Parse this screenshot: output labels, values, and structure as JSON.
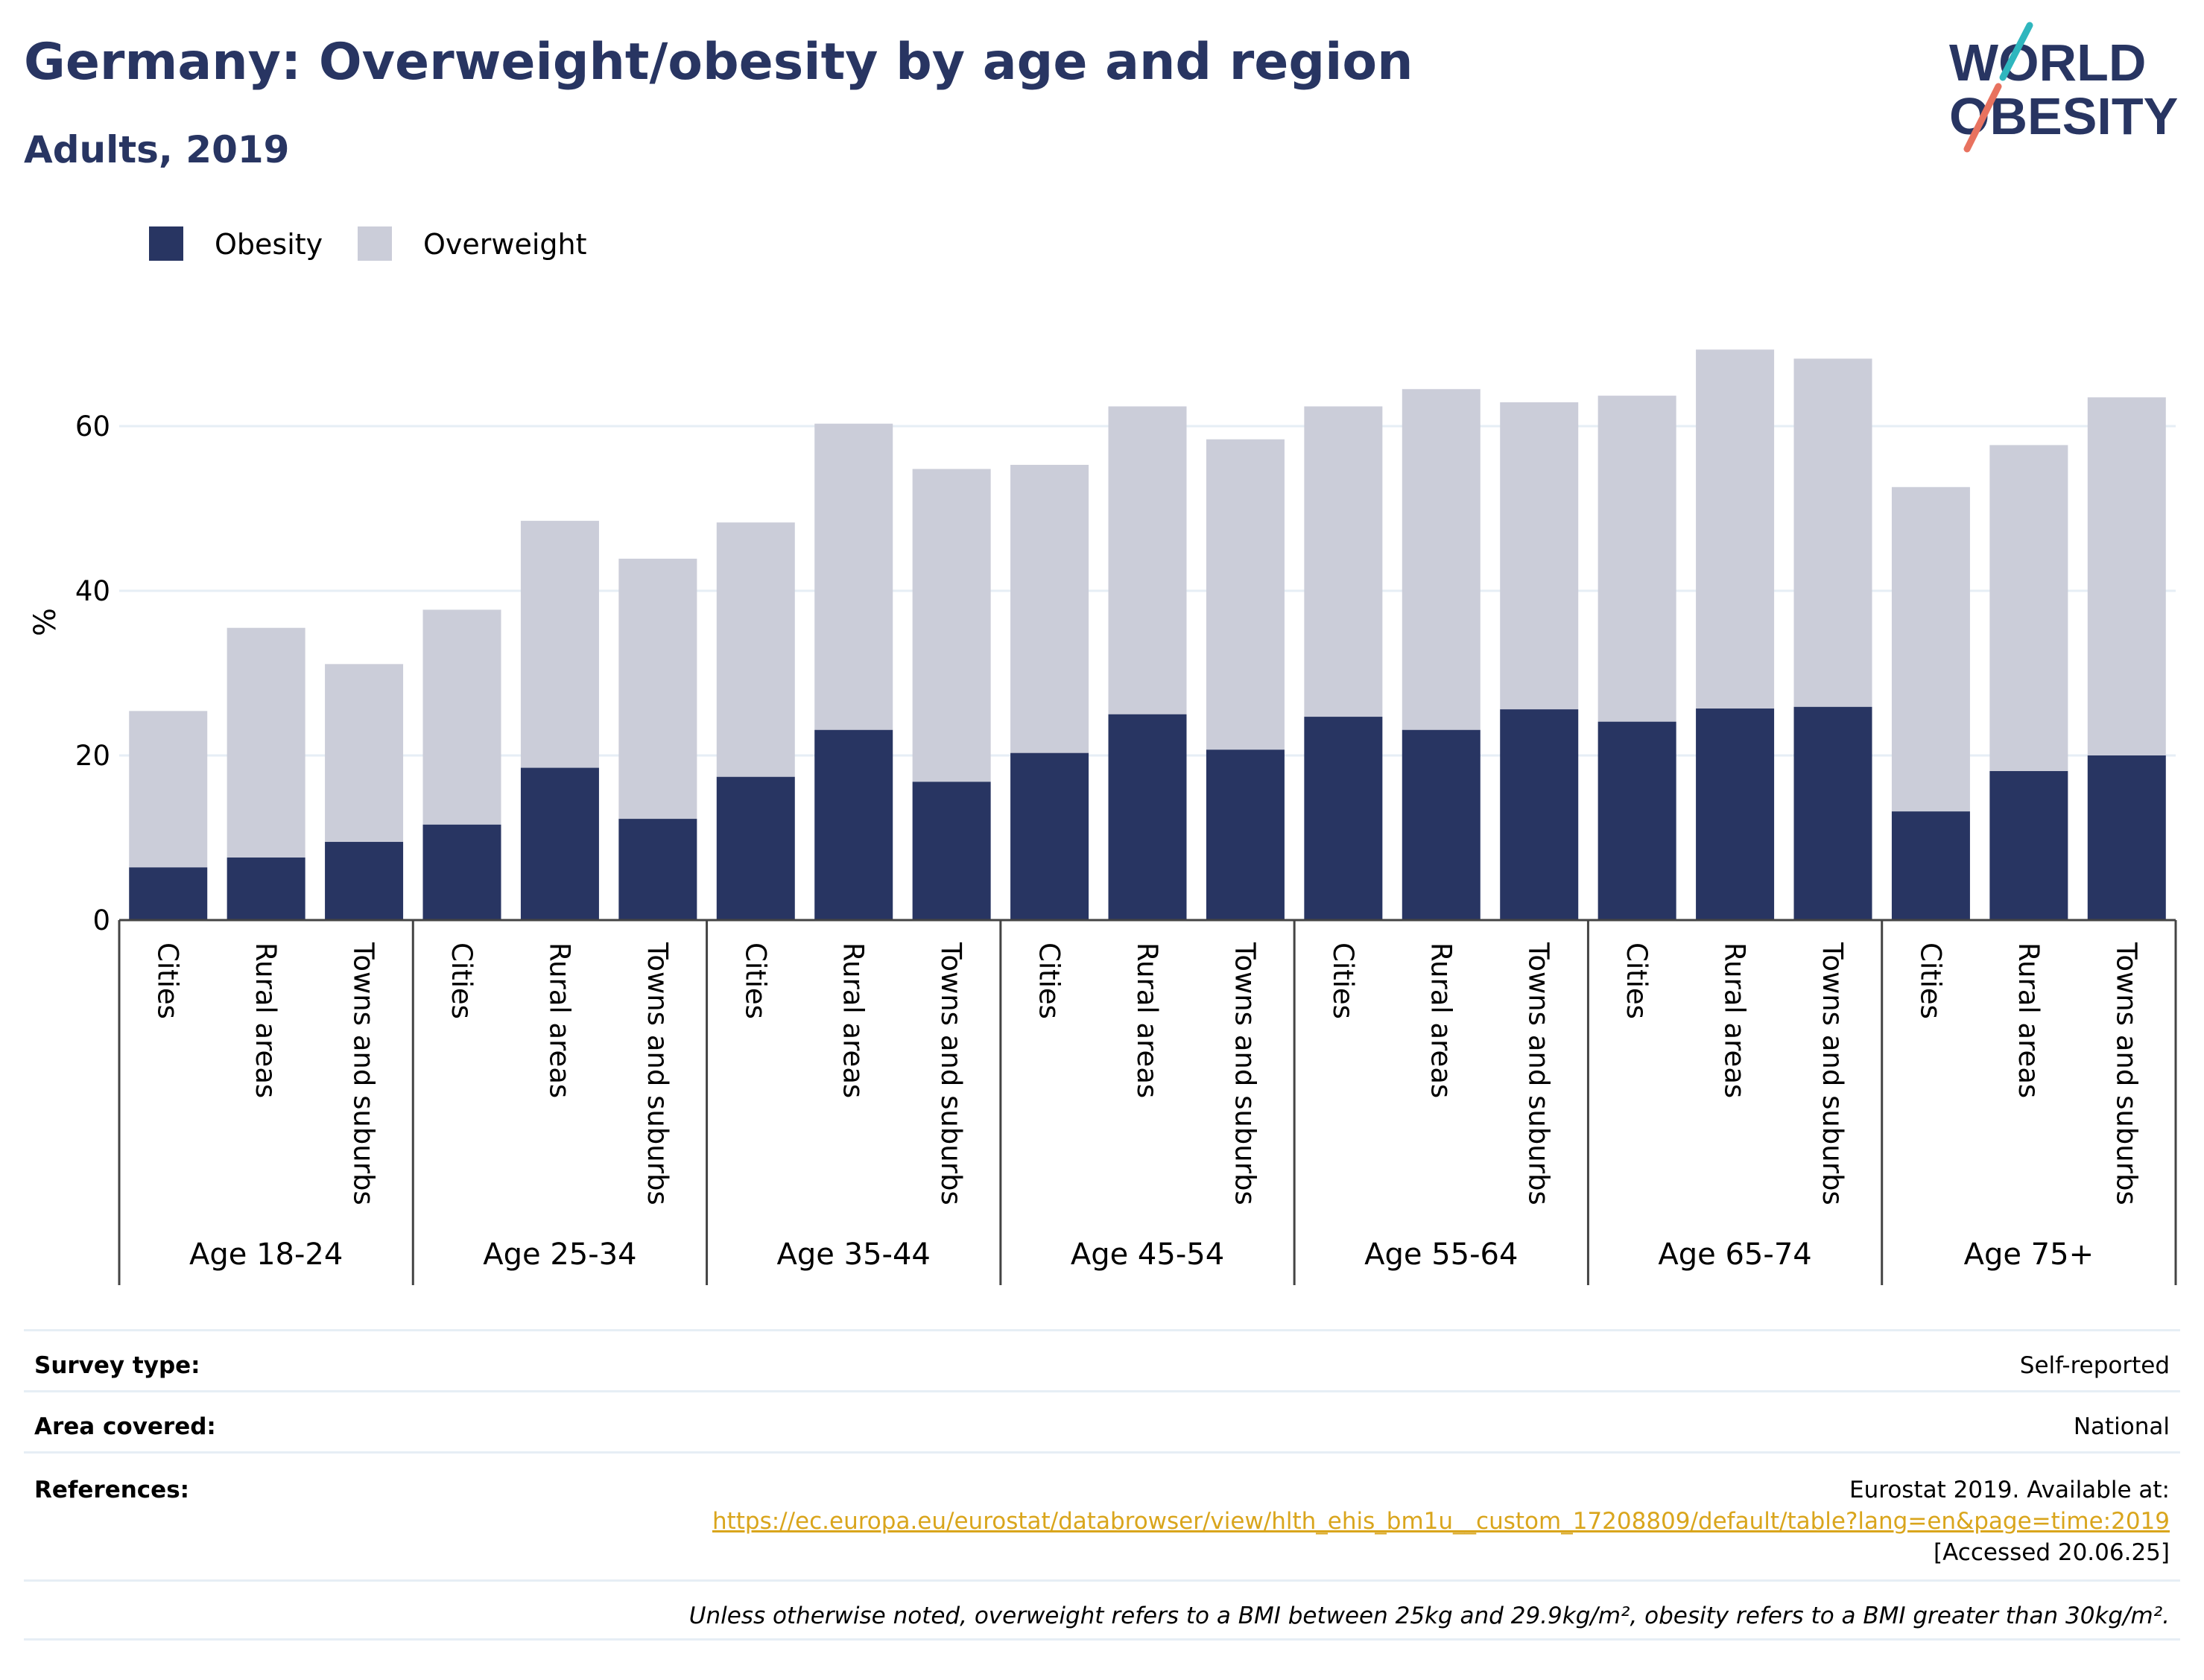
{
  "header": {
    "title": "Germany: Overweight/obesity by age and region",
    "subtitle": "Adults, 2019"
  },
  "logo": {
    "line1": "WORLD",
    "line2": "OBESITY"
  },
  "colors": {
    "obesity": "#283562",
    "overweight": "#cbcdd9",
    "title": "#283562",
    "link": "#d9a51c"
  },
  "chart_data": {
    "type": "bar",
    "stacked": true,
    "ylabel": "%",
    "ylim": [
      0,
      75
    ],
    "yticks": [
      0,
      20,
      40,
      60
    ],
    "grid": true,
    "legend_position": "top-left",
    "categories": [
      "Cities",
      "Rural areas",
      "Towns and suburbs",
      "Cities",
      "Rural areas",
      "Towns and suburbs",
      "Cities",
      "Rural areas",
      "Towns and suburbs",
      "Cities",
      "Rural areas",
      "Towns and suburbs",
      "Cities",
      "Rural areas",
      "Towns and suburbs",
      "Cities",
      "Rural areas",
      "Towns and suburbs",
      "Cities",
      "Rural areas",
      "Towns and suburbs"
    ],
    "groups": [
      "Age 18-24",
      "Age 25-34",
      "Age 35-44",
      "Age 45-54",
      "Age 55-64",
      "Age 65-74",
      "Age 75+"
    ],
    "series": [
      {
        "name": "Obesity",
        "values": [
          6.4,
          7.6,
          9.5,
          11.6,
          18.5,
          12.3,
          17.4,
          23.1,
          16.8,
          20.3,
          25.0,
          20.7,
          24.7,
          23.1,
          25.6,
          24.1,
          25.7,
          25.9,
          13.2,
          18.1,
          20.0
        ]
      },
      {
        "name": "Overweight",
        "values": [
          19.0,
          27.9,
          21.6,
          26.1,
          30.0,
          31.6,
          30.9,
          37.2,
          38.0,
          35.0,
          37.4,
          37.7,
          37.7,
          41.4,
          37.3,
          39.6,
          43.6,
          42.3,
          39.4,
          39.6,
          43.5
        ]
      }
    ]
  },
  "meta": {
    "survey_label": "Survey type:",
    "survey_value": "Self-reported",
    "area_label": "Area covered:",
    "area_value": "National",
    "refs_label": "References:",
    "refs_line1": "Eurostat 2019. Available at:",
    "refs_link": "https://ec.europa.eu/eurostat/databrowser/view/hlth_ehis_bm1u__custom_17208809/default/table?lang=en&page=time:2019",
    "refs_line3": "[Accessed 20.06.25]",
    "note": "Unless otherwise noted, overweight refers to a BMI between 25kg and 29.9kg/m², obesity refers to a BMI greater than 30kg/m²."
  }
}
